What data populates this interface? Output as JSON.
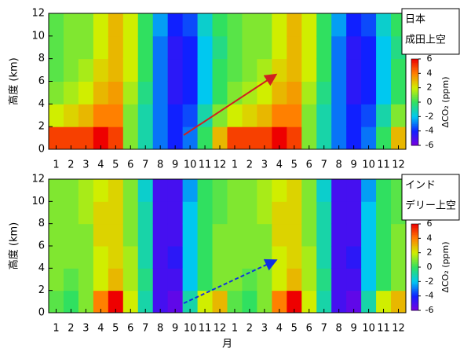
{
  "chart_data": [
    {
      "type": "heatmap",
      "title": [
        "日本",
        "成田上空"
      ],
      "ylabel": "高度 (km)",
      "categories": [
        "1",
        "2",
        "3",
        "4",
        "5",
        "6",
        "7",
        "8",
        "9",
        "10",
        "11",
        "12",
        "1",
        "2",
        "3",
        "4",
        "5",
        "6",
        "7",
        "8",
        "9",
        "10",
        "11",
        "12"
      ],
      "ybins": [
        0,
        2,
        4,
        6,
        8,
        10,
        12
      ],
      "ylim": [
        0,
        12
      ],
      "yticks": [
        0,
        2,
        4,
        6,
        8,
        10,
        12
      ],
      "values": [
        [
          5,
          2,
          1,
          0.5,
          0.5,
          0.5
        ],
        [
          5,
          2.5,
          1.5,
          1,
          1,
          1
        ],
        [
          5,
          3,
          2,
          1.5,
          1,
          1
        ],
        [
          6,
          4,
          3,
          2.5,
          2,
          2
        ],
        [
          5,
          4,
          3.5,
          3,
          3,
          3
        ],
        [
          1,
          1,
          1.5,
          2,
          2,
          2
        ],
        [
          -1,
          -1,
          -0.5,
          0,
          0,
          0
        ],
        [
          -3,
          -3,
          -3,
          -3,
          -3,
          -2.5
        ],
        [
          -4,
          -4,
          -4.5,
          -4.5,
          -4.5,
          -4
        ],
        [
          -3,
          -3.5,
          -4,
          -4,
          -4,
          -3.5
        ],
        [
          0,
          -1,
          -2,
          -2,
          -2,
          -1.5
        ],
        [
          3,
          1,
          0,
          0,
          -0.5,
          0
        ],
        [
          5,
          2,
          1,
          0.5,
          0.5,
          0.5
        ],
        [
          5,
          2.5,
          1.5,
          1,
          1,
          1
        ],
        [
          5,
          3,
          2,
          1.5,
          1,
          1
        ],
        [
          6,
          4,
          3,
          2.5,
          2,
          2
        ],
        [
          5,
          4,
          3.5,
          3,
          3,
          3
        ],
        [
          1,
          1,
          1.5,
          2,
          2,
          2
        ],
        [
          -1,
          -1,
          -0.5,
          0,
          0,
          0
        ],
        [
          -3,
          -3,
          -3,
          -3,
          -3,
          -2.5
        ],
        [
          -4,
          -4,
          -4.5,
          -4.5,
          -4.5,
          -4
        ],
        [
          -3,
          -3.5,
          -4,
          -4,
          -4,
          -3.5
        ],
        [
          0,
          -1,
          -2,
          -2,
          -2,
          -1.5
        ],
        [
          3,
          1,
          0,
          0,
          -0.5,
          0
        ]
      ],
      "clim": [
        -6,
        6
      ],
      "cticks": [
        6,
        4,
        2,
        0,
        -2,
        -4,
        -6
      ],
      "colorbar_label": "ΔCO₂ (ppm)",
      "colors": [
        "#7a00e0",
        "#1020ff",
        "#00c8f0",
        "#30e060",
        "#d0ee00",
        "#ff8000",
        "#ee0000"
      ]
    },
    {
      "type": "heatmap",
      "title": [
        "インド",
        "デリー上空"
      ],
      "ylabel": "高度 (km)",
      "xlabel": "月",
      "categories": [
        "1",
        "2",
        "3",
        "4",
        "5",
        "6",
        "7",
        "8",
        "9",
        "10",
        "11",
        "12",
        "1",
        "2",
        "3",
        "4",
        "5",
        "6",
        "7",
        "8",
        "9",
        "10",
        "11",
        "12"
      ],
      "ybins": [
        0,
        2,
        4,
        6,
        8,
        10,
        12
      ],
      "ylim": [
        0,
        12
      ],
      "yticks": [
        0,
        2,
        4,
        6,
        8,
        10,
        12
      ],
      "values": [
        [
          0.5,
          1,
          1,
          1,
          1,
          1
        ],
        [
          0,
          0.5,
          1,
          1,
          1,
          1
        ],
        [
          1,
          1,
          1,
          1,
          1.5,
          1.5
        ],
        [
          4,
          2,
          2,
          2.5,
          2.5,
          2
        ],
        [
          6,
          3,
          2.5,
          2.5,
          2.5,
          2.5
        ],
        [
          2,
          1.5,
          1.5,
          1,
          1,
          1
        ],
        [
          -1,
          -0.5,
          -1,
          -1,
          -1,
          -1.5
        ],
        [
          -5,
          -5,
          -5,
          -5,
          -5,
          -5
        ],
        [
          -5.5,
          -5,
          -4.5,
          -5,
          -5,
          -5
        ],
        [
          -1,
          -2,
          -2,
          -2,
          -2,
          -2.5
        ],
        [
          2,
          0,
          0,
          0,
          0,
          0
        ],
        [
          3,
          1,
          1,
          1,
          0.5,
          0.5
        ],
        [
          0.5,
          1,
          1,
          1,
          1,
          1
        ],
        [
          0,
          0.5,
          1,
          1,
          1,
          1
        ],
        [
          1,
          1,
          1,
          1,
          1.5,
          1.5
        ],
        [
          4,
          2,
          2,
          2.5,
          2.5,
          2
        ],
        [
          6,
          3,
          2.5,
          2.5,
          2.5,
          2.5
        ],
        [
          2,
          1.5,
          1.5,
          1,
          1,
          1
        ],
        [
          -1,
          -0.5,
          -1,
          -1,
          -1,
          -1.5
        ],
        [
          -5,
          -5,
          -5,
          -5,
          -5,
          -5
        ],
        [
          -5.5,
          -5,
          -4.5,
          -5,
          -5,
          -5
        ],
        [
          -1,
          -2,
          -2,
          -2,
          -2,
          -2.5
        ],
        [
          2,
          0,
          0,
          0,
          0,
          0
        ],
        [
          3,
          1,
          1,
          1,
          0.5,
          0.5
        ]
      ],
      "clim": [
        -6,
        6
      ],
      "cticks": [
        6,
        4,
        2,
        0,
        -2,
        -4,
        -6
      ],
      "colorbar_label": "ΔCO₂ (ppm)",
      "colors": [
        "#7a00e0",
        "#1020ff",
        "#00c8f0",
        "#30e060",
        "#d0ee00",
        "#ff8000",
        "#ee0000"
      ]
    }
  ]
}
